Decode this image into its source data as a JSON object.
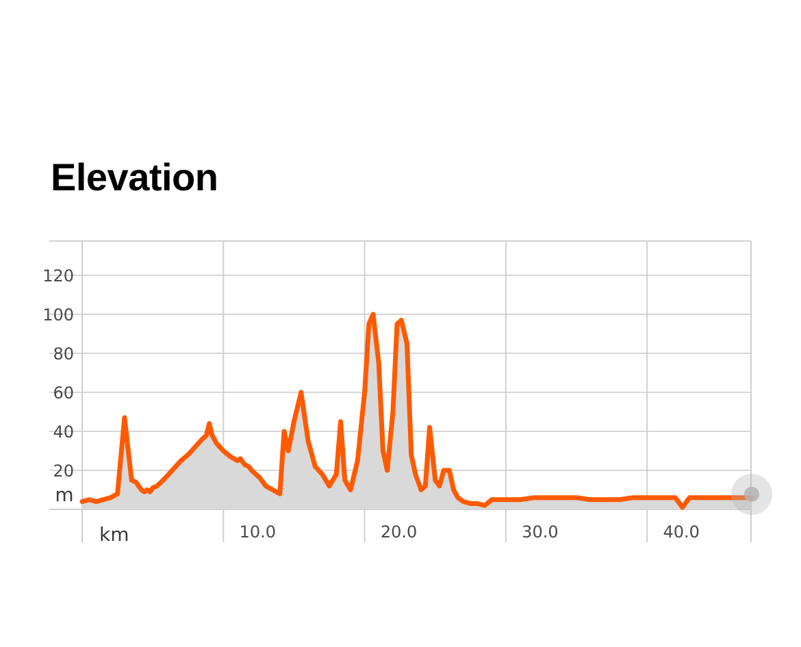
{
  "title": "Elevation",
  "chart_data": {
    "type": "area",
    "title": "Elevation",
    "xlabel": "km",
    "ylabel": "m",
    "x_ticks": [
      "10.0",
      "20.0",
      "30.0",
      "40.0"
    ],
    "y_ticks": [
      "20",
      "40",
      "60",
      "80",
      "100",
      "120"
    ],
    "xlim": [
      0,
      47.4
    ],
    "ylim": [
      0,
      140
    ],
    "grid": true,
    "line_color": "#ff5a00",
    "fill_color": "#d9d9d9",
    "scrubber_color": "#b3b3b3",
    "series": [
      {
        "x": [
          0,
          0.5,
          1,
          1.5,
          2,
          2.5,
          3,
          3.5,
          3.8,
          4.0,
          4.2,
          4.4,
          4.6,
          4.8,
          5.0,
          5.3,
          5.6,
          6.0,
          6.5,
          7.0,
          7.5,
          8.0,
          8.5,
          8.8,
          9.0,
          9.2,
          9.5,
          10.0,
          10.5,
          11.0,
          11.2,
          11.5,
          11.8,
          12.0,
          12.3,
          12.6,
          12.8,
          13.0,
          13.5,
          14.0,
          14.3,
          14.6,
          15.0,
          15.5,
          16.0,
          16.5,
          17.0,
          17.5,
          18.0,
          18.3,
          18.6,
          19.0,
          19.5,
          20.0,
          20.3,
          20.6,
          21.0,
          21.3,
          21.6,
          22.0,
          22.3,
          22.6,
          23.0,
          23.3,
          23.6,
          24.0,
          24.3,
          24.6,
          25.0,
          25.3,
          25.6,
          26.0,
          26.3,
          26.6,
          27.0,
          27.5,
          28.0,
          28.5,
          29.0,
          29.5,
          30.0,
          31.0,
          32.0,
          33.0,
          34.0,
          35.0,
          36.0,
          37.0,
          38.0,
          39.0,
          40.0,
          42.0,
          42.5,
          43.0,
          43.5,
          44.0,
          45.0,
          46.0,
          47.4
        ],
        "values": [
          4,
          5,
          4,
          5,
          6,
          8,
          47,
          15,
          14,
          12,
          10,
          9,
          10,
          9,
          11,
          12,
          14,
          17,
          21,
          25,
          28,
          32,
          36,
          38,
          44,
          38,
          34,
          30,
          27,
          25,
          26,
          23,
          22,
          20,
          18,
          16,
          14,
          12,
          10,
          8,
          40,
          30,
          45,
          60,
          35,
          22,
          18,
          12,
          18,
          45,
          15,
          10,
          25,
          60,
          95,
          100,
          75,
          30,
          20,
          50,
          95,
          97,
          85,
          28,
          18,
          10,
          12,
          42,
          15,
          12,
          20,
          20,
          10,
          6,
          4,
          3,
          3,
          2,
          5,
          5,
          5,
          5,
          6,
          6,
          6,
          6,
          5,
          5,
          5,
          6,
          6,
          6,
          1,
          6,
          6,
          6,
          6,
          6,
          6
        ]
      }
    ]
  }
}
